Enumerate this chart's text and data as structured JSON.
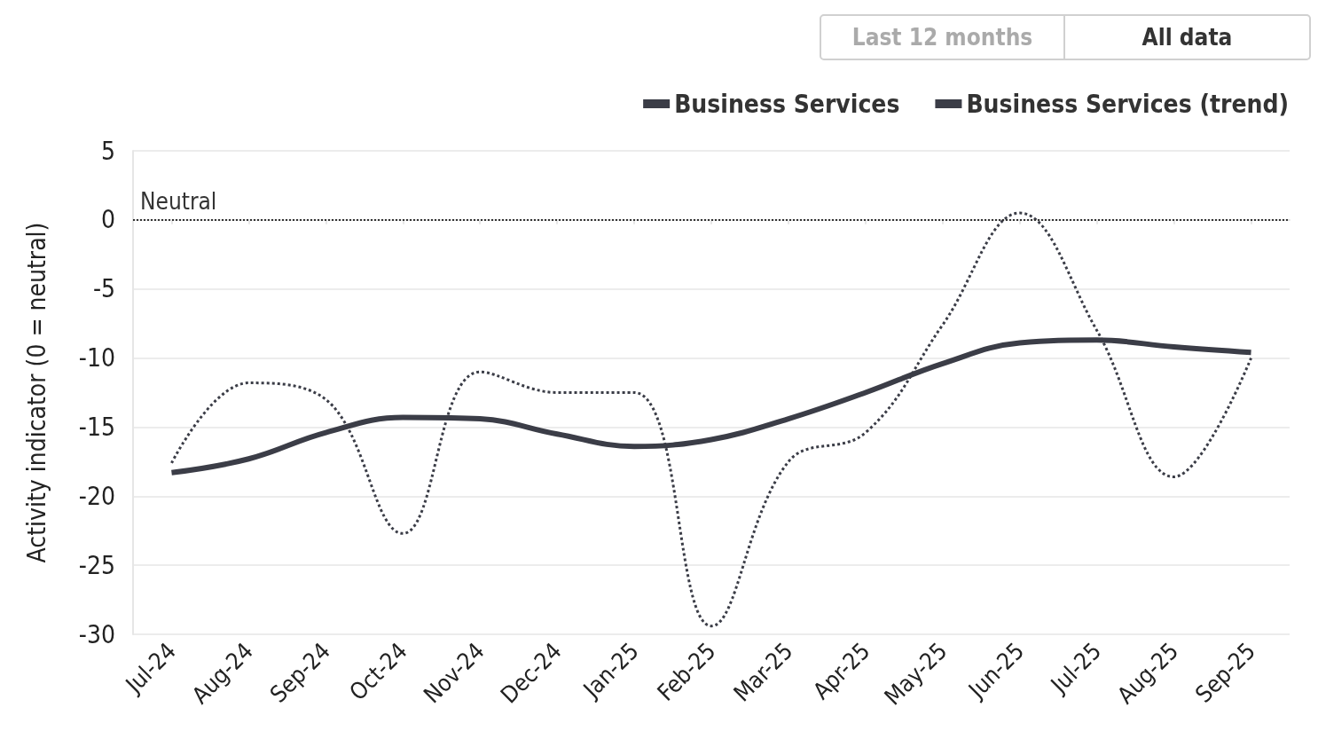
{
  "chart_data": {
    "type": "line",
    "ylabel": "Activity indicator (0 = neutral)",
    "categories": [
      "Jul-24",
      "Aug-24",
      "Sep-24",
      "Oct-24",
      "Nov-24",
      "Dec-24",
      "Jan-25",
      "Feb-25",
      "Mar-25",
      "Apr-25",
      "May-25",
      "Jun-25",
      "Jul-25",
      "Aug-25",
      "Sep-25"
    ],
    "series": [
      {
        "name": "Business Services",
        "color": "#3b3d47",
        "line_style": "dotted",
        "values": [
          -17.6,
          -11.8,
          -13.0,
          -22.7,
          -11.0,
          -12.5,
          -12.5,
          -29.4,
          -17.5,
          -15.4,
          -7.6,
          0.5,
          -8.0,
          -18.6,
          -10.0
        ]
      },
      {
        "name": "Business Services (trend)",
        "color": "#3b3d47",
        "line_style": "solid",
        "values": [
          -18.3,
          -17.3,
          -15.4,
          -14.3,
          -14.4,
          -15.5,
          -16.4,
          -15.9,
          -14.4,
          -12.5,
          -10.4,
          -8.9,
          -8.7,
          -9.2,
          -9.6
        ]
      }
    ],
    "ylim": [
      -30,
      5
    ],
    "yticks": [
      -30,
      -25,
      -20,
      -15,
      -10,
      -5,
      0,
      5
    ],
    "ref_lines": [
      {
        "axis": "y",
        "value": 0,
        "label": "Neutral",
        "color": "#333333",
        "line_style": "dotted"
      }
    ],
    "grid": "y",
    "legend": "top right",
    "marker": "none",
    "annotations": [
      "Last 12 months",
      "All data"
    ]
  }
}
